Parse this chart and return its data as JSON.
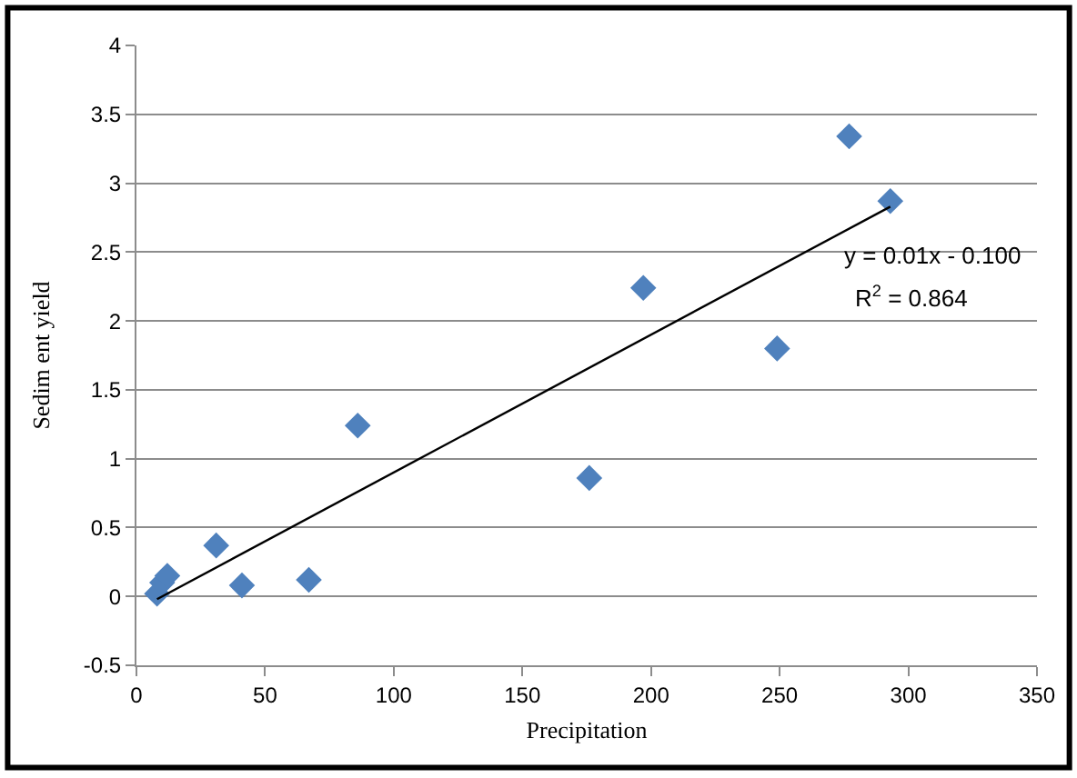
{
  "chart_data": {
    "type": "scatter",
    "xlabel": "Precipitation",
    "ylabel": "Sedim ent yield",
    "xlim": [
      0,
      350
    ],
    "xticks": [
      0,
      50,
      100,
      150,
      200,
      250,
      300,
      350
    ],
    "ylim": [
      -0.5,
      4
    ],
    "yticks": [
      -0.5,
      0,
      0.5,
      1,
      1.5,
      2,
      2.5,
      3,
      3.5,
      4
    ],
    "grid": "y",
    "marker": "diamond",
    "series": [
      {
        "color": "#4f81bd",
        "x": [
          8,
          10,
          12,
          31,
          41,
          67,
          86,
          176,
          197,
          249,
          277,
          293
        ],
        "values": [
          0.02,
          0.1,
          0.15,
          0.37,
          0.08,
          0.12,
          1.24,
          0.86,
          2.24,
          1.8,
          3.34,
          2.87
        ]
      },
      {
        "type": "line",
        "color": "#000000",
        "marker": "none",
        "x": [
          8,
          293
        ],
        "values": [
          -0.02,
          2.83
        ]
      }
    ],
    "annotations": [
      "y = 0.01x - 0.100",
      "R$^{2}$ = 0.864"
    ]
  }
}
